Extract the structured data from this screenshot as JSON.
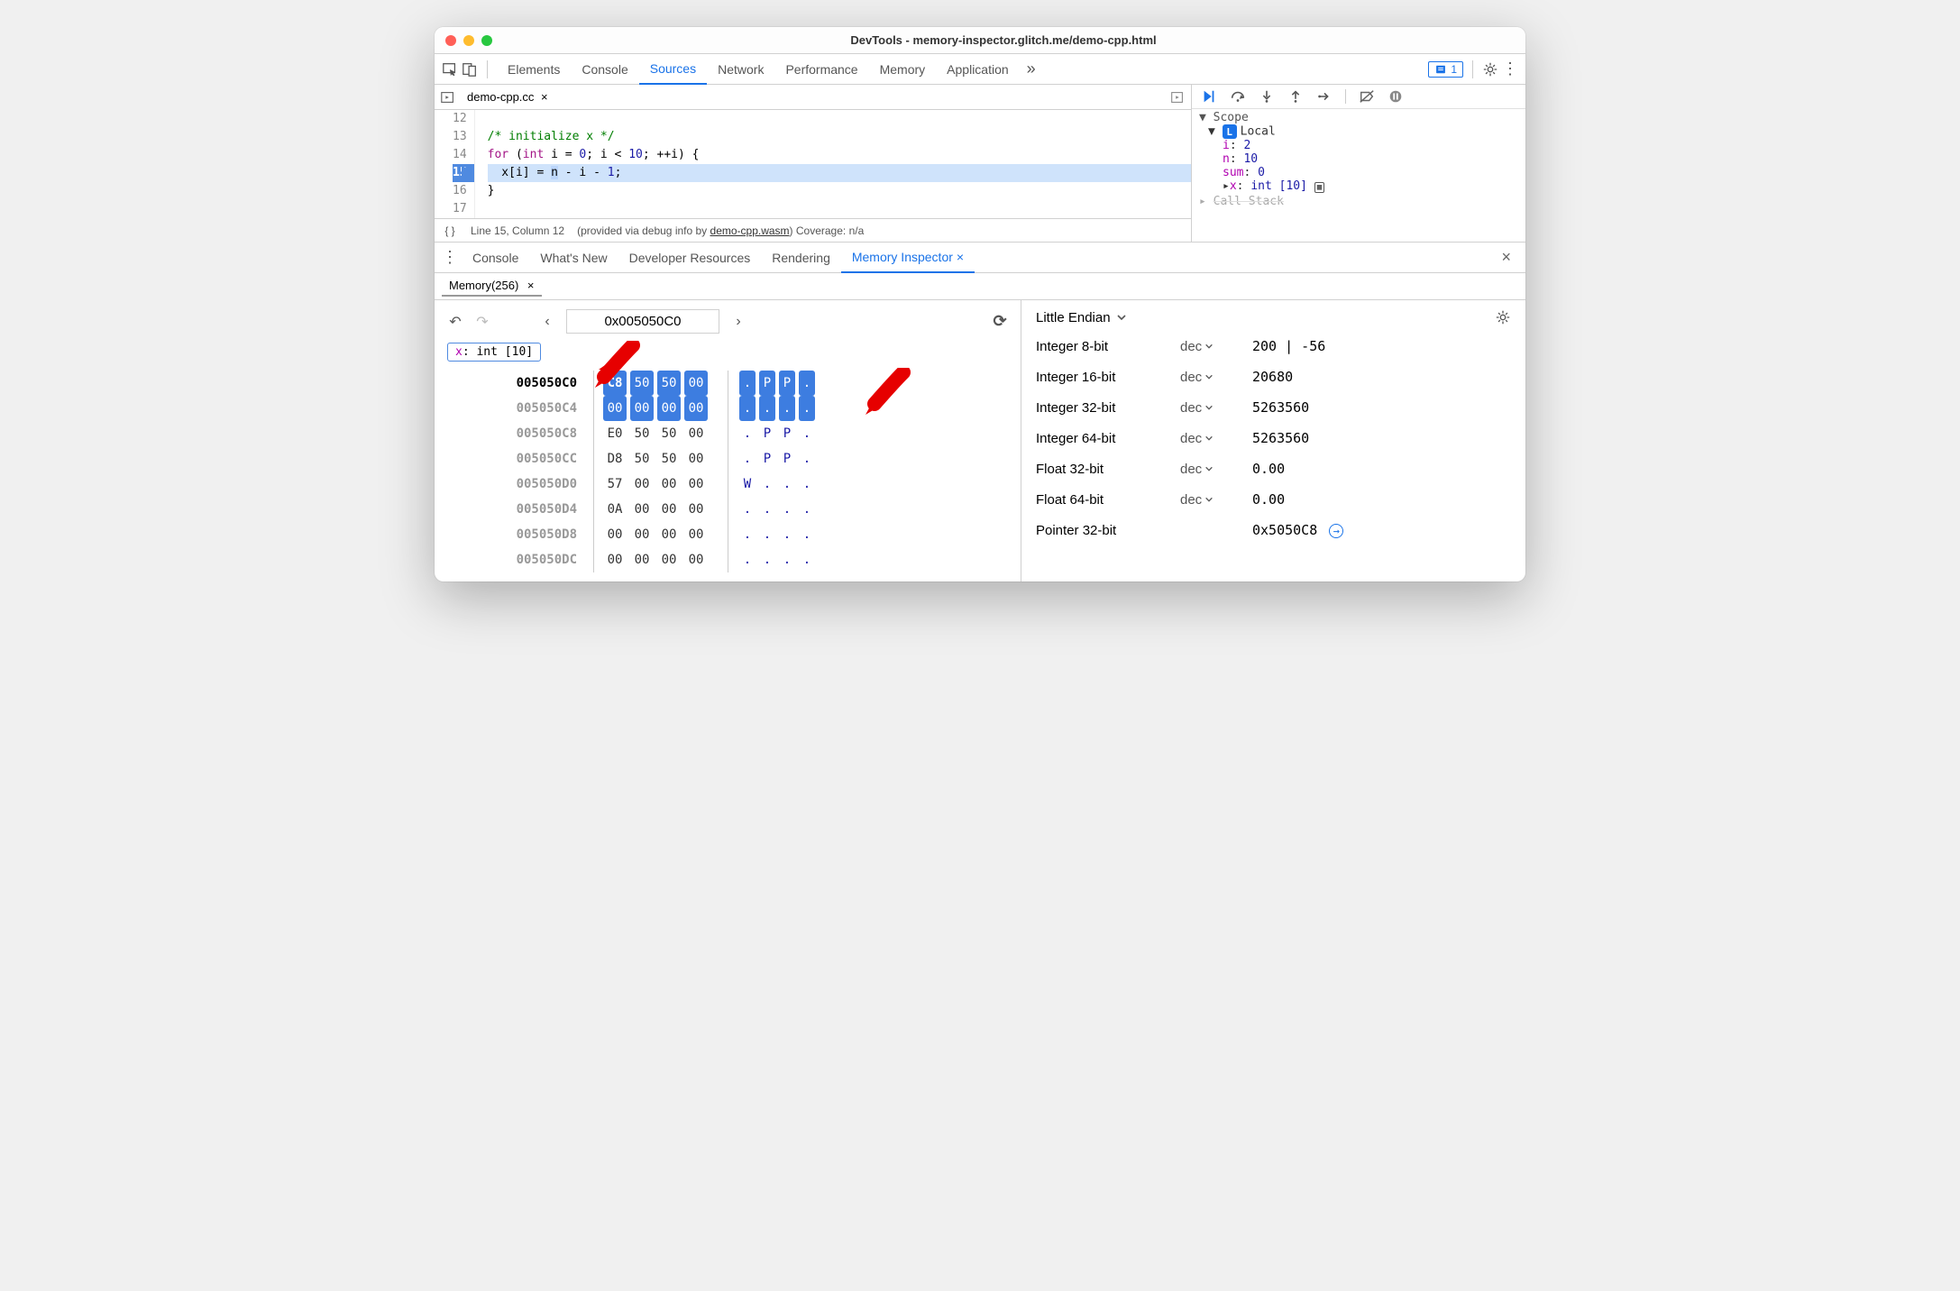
{
  "window": {
    "title": "DevTools - memory-inspector.glitch.me/demo-cpp.html"
  },
  "mainTabs": {
    "items": [
      "Elements",
      "Console",
      "Sources",
      "Network",
      "Performance",
      "Memory",
      "Application"
    ],
    "active": "Sources",
    "issueCount": "1"
  },
  "file": {
    "name": "demo-cpp.cc"
  },
  "code": {
    "lines": [
      {
        "n": "12",
        "html": ""
      },
      {
        "n": "13",
        "html": "<span class=\"cm-com\">/* initialize x */</span>"
      },
      {
        "n": "14",
        "html": "<span class=\"cm-kw\">for</span> (<span class=\"cm-type\">int</span> i = <span class=\"cm-num\">0</span>; i &lt; <span class=\"cm-num\">10</span>; ++i) {"
      },
      {
        "n": "15",
        "hl": true,
        "html": "  x[i] = <span class=\"cm-sel\">n</span> - i - <span class=\"cm-num\">1</span>;"
      },
      {
        "n": "16",
        "html": "}"
      },
      {
        "n": "17",
        "html": ""
      }
    ]
  },
  "status": {
    "pos": "Line 15, Column 12",
    "info_prefix": "(provided via debug info by ",
    "info_link": "demo-cpp.wasm",
    "info_suffix": ") Coverage: n/a"
  },
  "scope": {
    "header": "Scope",
    "label": "Local",
    "vars": [
      {
        "k": "i",
        "v": "2"
      },
      {
        "k": "n",
        "v": "10"
      },
      {
        "k": "sum",
        "v": "0"
      },
      {
        "k": "x",
        "v": "int [10]",
        "expandable": true,
        "icon": true
      }
    ],
    "callstack": "Call Stack"
  },
  "drawer": {
    "items": [
      "Console",
      "What's New",
      "Developer Resources",
      "Rendering",
      "Memory Inspector"
    ],
    "active": "Memory Inspector"
  },
  "memoryTab": {
    "label": "Memory(256)"
  },
  "nav": {
    "address": "0x005050C0"
  },
  "chip": {
    "name": "x",
    "type": "int [10]"
  },
  "hex": {
    "rows": [
      {
        "addr": "005050C0",
        "first": true,
        "hl": true,
        "bytes": [
          "C8",
          "50",
          "50",
          "00"
        ],
        "ascii": [
          ".",
          "P",
          "P",
          "."
        ]
      },
      {
        "addr": "005050C4",
        "hl": true,
        "bytes": [
          "00",
          "00",
          "00",
          "00"
        ],
        "ascii": [
          ".",
          ".",
          ".",
          "."
        ]
      },
      {
        "addr": "005050C8",
        "bytes": [
          "E0",
          "50",
          "50",
          "00"
        ],
        "ascii": [
          ".",
          "P",
          "P",
          "."
        ]
      },
      {
        "addr": "005050CC",
        "bytes": [
          "D8",
          "50",
          "50",
          "00"
        ],
        "ascii": [
          ".",
          "P",
          "P",
          "."
        ]
      },
      {
        "addr": "005050D0",
        "bytes": [
          "57",
          "00",
          "00",
          "00"
        ],
        "ascii": [
          "W",
          ".",
          ".",
          "."
        ]
      },
      {
        "addr": "005050D4",
        "bytes": [
          "0A",
          "00",
          "00",
          "00"
        ],
        "ascii": [
          ".",
          ".",
          ".",
          "."
        ]
      },
      {
        "addr": "005050D8",
        "bytes": [
          "00",
          "00",
          "00",
          "00"
        ],
        "ascii": [
          ".",
          ".",
          ".",
          "."
        ]
      },
      {
        "addr": "005050DC",
        "bytes": [
          "00",
          "00",
          "00",
          "00"
        ],
        "ascii": [
          ".",
          ".",
          ".",
          "."
        ]
      }
    ]
  },
  "endianLabel": "Little Endian",
  "valueRows": [
    {
      "label": "Integer 8-bit",
      "mode": "dec",
      "value": "200 | -56"
    },
    {
      "label": "Integer 16-bit",
      "mode": "dec",
      "value": "20680"
    },
    {
      "label": "Integer 32-bit",
      "mode": "dec",
      "value": "5263560"
    },
    {
      "label": "Integer 64-bit",
      "mode": "dec",
      "value": "5263560"
    },
    {
      "label": "Float 32-bit",
      "mode": "dec",
      "value": "0.00"
    },
    {
      "label": "Float 64-bit",
      "mode": "dec",
      "value": "0.00"
    },
    {
      "label": "Pointer 32-bit",
      "mode": "",
      "value": "0x5050C8 ",
      "jump": true
    }
  ],
  "colors": {
    "accent": "#1a73e8",
    "highlight": "#3d7de0",
    "arrow": "#e60000"
  }
}
